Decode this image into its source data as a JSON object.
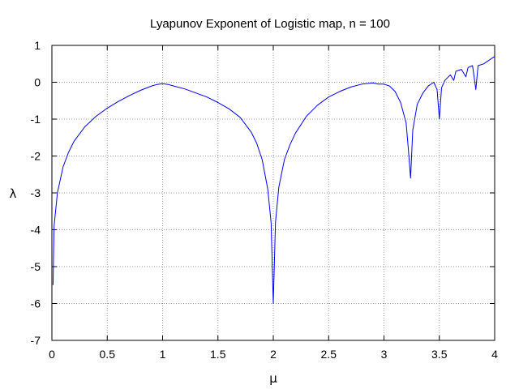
{
  "chart_data": {
    "type": "line",
    "title": "Lyapunov Exponent of Logistic map, n = 100",
    "xlabel": "μ",
    "ylabel": "λ",
    "xlim": [
      0,
      4
    ],
    "ylim": [
      -7,
      1
    ],
    "xticks": [
      "0",
      "0.5",
      "1",
      "1.5",
      "2",
      "2.5",
      "3",
      "3.5",
      "4"
    ],
    "xtick_values": [
      0,
      0.5,
      1,
      1.5,
      2,
      2.5,
      3,
      3.5,
      4
    ],
    "yticks": [
      "1",
      "0",
      "-1",
      "-2",
      "-3",
      "-4",
      "-5",
      "-6",
      "-7"
    ],
    "ytick_values": [
      1,
      0,
      -1,
      -2,
      -3,
      -4,
      -5,
      -6,
      -7
    ],
    "grid": true,
    "legend": "none",
    "series": [
      {
        "color": "#0000ff",
        "x": [
          0.01,
          0.02,
          0.05,
          0.1,
          0.15,
          0.2,
          0.3,
          0.4,
          0.5,
          0.6,
          0.7,
          0.8,
          0.9,
          0.95,
          1.0,
          1.05,
          1.1,
          1.2,
          1.3,
          1.4,
          1.5,
          1.6,
          1.7,
          1.8,
          1.85,
          1.9,
          1.95,
          1.98,
          2.0,
          2.02,
          2.05,
          2.1,
          2.15,
          2.2,
          2.3,
          2.4,
          2.5,
          2.6,
          2.7,
          2.8,
          2.9,
          2.95,
          3.0,
          3.05,
          3.1,
          3.15,
          3.2,
          3.22,
          3.24,
          3.26,
          3.3,
          3.35,
          3.4,
          3.45,
          3.48,
          3.5,
          3.52,
          3.55,
          3.6,
          3.63,
          3.65,
          3.7,
          3.74,
          3.76,
          3.8,
          3.83,
          3.85,
          3.9,
          3.95,
          4.0
        ],
        "y": [
          -5.5,
          -3.9,
          -3.0,
          -2.3,
          -1.9,
          -1.6,
          -1.2,
          -0.92,
          -0.7,
          -0.52,
          -0.36,
          -0.22,
          -0.1,
          -0.06,
          -0.04,
          -0.06,
          -0.1,
          -0.18,
          -0.29,
          -0.4,
          -0.55,
          -0.72,
          -0.95,
          -1.35,
          -1.65,
          -2.1,
          -2.9,
          -3.8,
          -6.0,
          -3.8,
          -2.85,
          -2.1,
          -1.7,
          -1.38,
          -0.92,
          -0.62,
          -0.4,
          -0.25,
          -0.13,
          -0.05,
          -0.02,
          -0.05,
          -0.05,
          -0.1,
          -0.25,
          -0.55,
          -1.1,
          -1.8,
          -2.6,
          -1.3,
          -0.6,
          -0.3,
          -0.1,
          0.0,
          -0.2,
          -1.0,
          -0.15,
          0.05,
          0.2,
          0.05,
          0.3,
          0.35,
          0.15,
          0.4,
          0.45,
          -0.2,
          0.45,
          0.5,
          0.6,
          0.7
        ]
      }
    ]
  }
}
